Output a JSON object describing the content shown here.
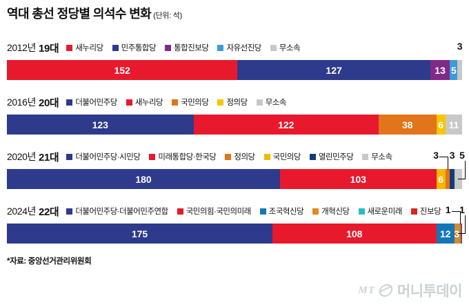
{
  "title": "역대 총선 정당별 의석수 변화",
  "unit": "(단위: 석)",
  "source": "*자료: 중앙선거관리위원회",
  "logo": {
    "mt": "MT",
    "name": "머니투데이"
  },
  "chart_data": {
    "type": "bar",
    "stacked": true,
    "orientation": "horizontal",
    "total_seats": 300,
    "xlim": [
      0,
      300
    ],
    "rows": [
      {
        "year": "2012년",
        "assembly": "19대",
        "legend": [
          {
            "label": "새누리당",
            "color": "#e8192c"
          },
          {
            "label": "민주통합당",
            "color": "#2e3a8c"
          },
          {
            "label": "통합진보당",
            "color": "#7f2a88"
          },
          {
            "label": "자유선진당",
            "color": "#3d9bd9"
          },
          {
            "label": "무소속",
            "color": "#c8c8c9"
          }
        ],
        "series": [
          {
            "name": "새누리당",
            "value": 152,
            "color": "#e8192c",
            "label": "inside"
          },
          {
            "name": "민주통합당",
            "value": 127,
            "color": "#2e3a8c",
            "label": "inside"
          },
          {
            "name": "통합진보당",
            "value": 13,
            "color": "#7f2a88",
            "label": "inside"
          },
          {
            "name": "자유선진당",
            "value": 5,
            "color": "#3d9bd9",
            "label": "inside"
          },
          {
            "name": "무소속",
            "value": 3,
            "color": "#c8c8c9",
            "label": "above",
            "leader": "none"
          }
        ]
      },
      {
        "year": "2016년",
        "assembly": "20대",
        "legend": [
          {
            "label": "더불어민주당",
            "color": "#2e3a8c"
          },
          {
            "label": "새누리당",
            "color": "#e8192c"
          },
          {
            "label": "국민의당",
            "color": "#e2741c"
          },
          {
            "label": "정의당",
            "color": "#f8c600"
          },
          {
            "label": "무소속",
            "color": "#c8c8c9"
          }
        ],
        "series": [
          {
            "name": "더불어민주당",
            "value": 123,
            "color": "#2e3a8c",
            "label": "inside"
          },
          {
            "name": "새누리당",
            "value": 122,
            "color": "#e8192c",
            "label": "inside"
          },
          {
            "name": "국민의당",
            "value": 38,
            "color": "#e2741c",
            "label": "inside"
          },
          {
            "name": "정의당",
            "value": 6,
            "color": "#f8c600",
            "label": "inside"
          },
          {
            "name": "무소속",
            "value": 11,
            "color": "#c8c8c9",
            "label": "inside"
          }
        ]
      },
      {
        "year": "2020년",
        "assembly": "21대",
        "legend": [
          {
            "label": "더불어민주당·시민당",
            "color": "#2e3a8c"
          },
          {
            "label": "미래통합당·한국당",
            "color": "#e8192c"
          },
          {
            "label": "정의당",
            "color": "#e2741c"
          },
          {
            "label": "국민의당",
            "color": "#f5b800"
          },
          {
            "label": "열린민주당",
            "color": "#123c77"
          },
          {
            "label": "무소속",
            "color": "#c8c8c9"
          }
        ],
        "series": [
          {
            "name": "더불어민주당·시민당",
            "value": 180,
            "color": "#2e3a8c",
            "label": "inside"
          },
          {
            "name": "미래통합당·한국당",
            "value": 103,
            "color": "#e8192c",
            "label": "inside"
          },
          {
            "name": "국민의당",
            "value": 6,
            "color": "#f5b800",
            "label": "inside"
          },
          {
            "name": "정의당",
            "value": 3,
            "color": "#e2741c",
            "label": "above",
            "leader": "left-elbow"
          },
          {
            "name": "열린민주당",
            "value": 3,
            "color": "#123c77",
            "label": "above",
            "leader": "none"
          },
          {
            "name": "무소속",
            "value": 5,
            "color": "#c8c8c9",
            "label": "above",
            "leader": "right-elbow"
          }
        ]
      },
      {
        "year": "2024년",
        "assembly": "22대",
        "legend": [
          {
            "label": "더불어민주당·더불어민주연합",
            "color": "#2e3a8c"
          },
          {
            "label": "국민의힘·국민의미래",
            "color": "#e8192c"
          },
          {
            "label": "조국혁신당",
            "color": "#1376b8"
          },
          {
            "label": "개혁신당",
            "color": "#e8851c"
          },
          {
            "label": "새로운미래",
            "color": "#2bbcbe"
          },
          {
            "label": "진보당",
            "color": "#d9271e"
          }
        ],
        "series": [
          {
            "name": "더불어민주당·더불어민주연합",
            "value": 175,
            "color": "#2e3a8c",
            "label": "inside"
          },
          {
            "name": "국민의힘·국민의미래",
            "value": 108,
            "color": "#e8192c",
            "label": "inside"
          },
          {
            "name": "조국혁신당",
            "value": 12,
            "color": "#1376b8",
            "label": "inside"
          },
          {
            "name": "개혁신당",
            "value": 3,
            "color": "#e8851c",
            "label": "inside"
          },
          {
            "name": "새로운미래",
            "value": 1,
            "color": "#2bbcbe",
            "label": "above",
            "leader": "left-elbow"
          },
          {
            "name": "진보당",
            "value": 1,
            "color": "#d9271e",
            "label": "above",
            "leader": "right-elbow"
          }
        ]
      }
    ]
  }
}
